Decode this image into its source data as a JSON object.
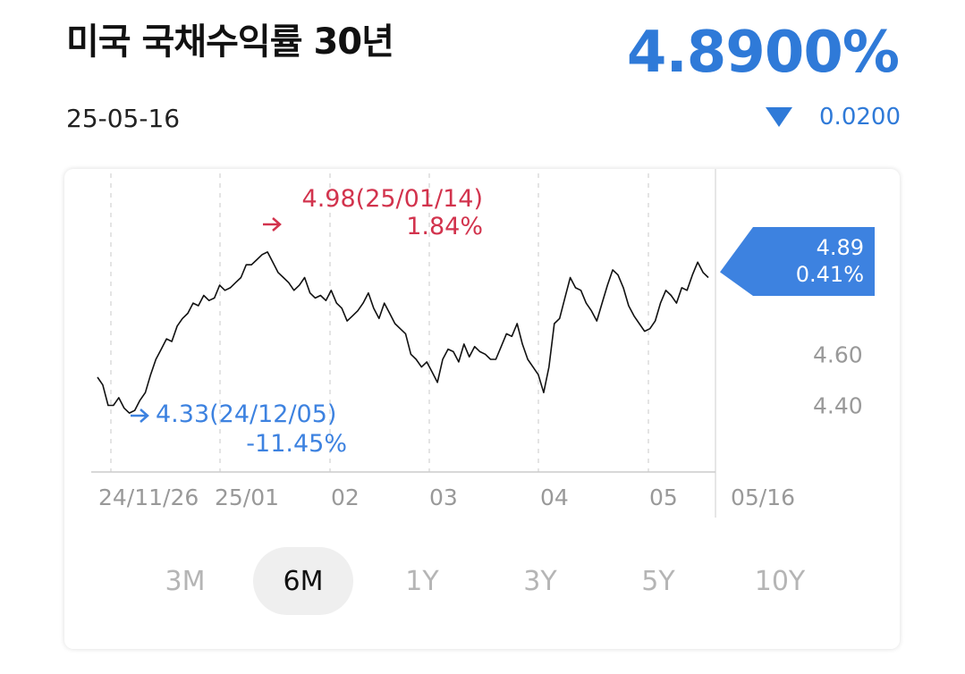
{
  "header": {
    "title": "미국 국채수익률 30년",
    "price": "4.8900%",
    "date": "25-05-16",
    "change": "0.0200",
    "change_direction": "down",
    "accent_color": "#2f7ad8"
  },
  "tabs": [
    {
      "label": "3M",
      "active": false
    },
    {
      "label": "6M",
      "active": true
    },
    {
      "label": "1Y",
      "active": false
    },
    {
      "label": "3Y",
      "active": false
    },
    {
      "label": "5Y",
      "active": false
    },
    {
      "label": "10Y",
      "active": false
    }
  ],
  "chart_data": {
    "type": "line",
    "x_tick_labels": [
      "24/11/26",
      "25/01",
      "02",
      "03",
      "04",
      "05",
      "05/16"
    ],
    "y_tick_labels": [
      "4.60",
      "4.40"
    ],
    "ylim": [
      4.15,
      5.15
    ],
    "grid": "vertical dashed",
    "current": {
      "value": "4.89",
      "change_pct": "0.41%",
      "color": "#3d82e0"
    },
    "high": {
      "value": "4.98",
      "date": "25/01/14",
      "change_pct": "1.84%",
      "label": "4.98(25/01/14)",
      "color": "#d2334d"
    },
    "low": {
      "value": "4.33",
      "date": "24/12/05",
      "change_pct": "-11.45%",
      "label": "4.33(24/12/05)",
      "color": "#3d82e0"
    },
    "series": [
      {
        "values": [
          4.51,
          4.48,
          4.4,
          4.4,
          4.43,
          4.39,
          4.37,
          4.38,
          4.42,
          4.45,
          4.52,
          4.58,
          4.62,
          4.66,
          4.65,
          4.71,
          4.74,
          4.76,
          4.8,
          4.79,
          4.83,
          4.81,
          4.82,
          4.87,
          4.85,
          4.86,
          4.88,
          4.9,
          4.95,
          4.95,
          4.97,
          4.99,
          5.0,
          4.96,
          4.92,
          4.9,
          4.88,
          4.85,
          4.87,
          4.9,
          4.84,
          4.82,
          4.83,
          4.81,
          4.85,
          4.8,
          4.78,
          4.73,
          4.75,
          4.77,
          4.8,
          4.84,
          4.78,
          4.74,
          4.8,
          4.76,
          4.72,
          4.7,
          4.68,
          4.6,
          4.58,
          4.55,
          4.57,
          4.53,
          4.49,
          4.58,
          4.62,
          4.61,
          4.57,
          4.64,
          4.59,
          4.63,
          4.61,
          4.6,
          4.58,
          4.58,
          4.63,
          4.68,
          4.67,
          4.72,
          4.64,
          4.58,
          4.55,
          4.52,
          4.45,
          4.55,
          4.72,
          4.74,
          4.82,
          4.9,
          4.86,
          4.85,
          4.8,
          4.77,
          4.73,
          4.8,
          4.87,
          4.93,
          4.91,
          4.86,
          4.79,
          4.75,
          4.72,
          4.69,
          4.7,
          4.73,
          4.8,
          4.85,
          4.83,
          4.8,
          4.86,
          4.85,
          4.91,
          4.96,
          4.92,
          4.9
        ]
      }
    ]
  }
}
